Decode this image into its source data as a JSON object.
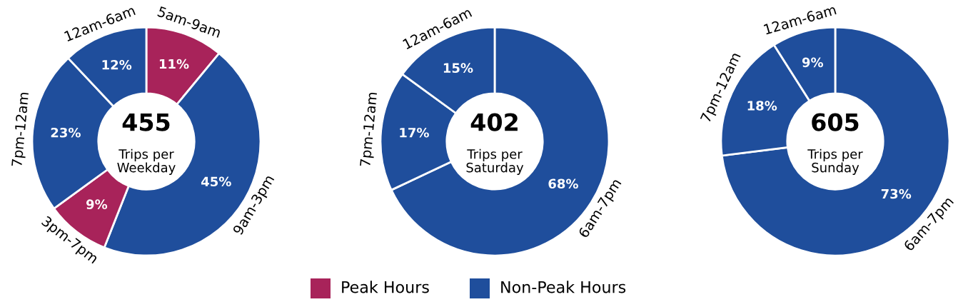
{
  "chart_data": [
    {
      "type": "donut",
      "categories": [
        "5am-9am",
        "9am-3pm",
        "3pm-7pm",
        "7pm-12am",
        "12am-6am"
      ],
      "values": [
        11,
        45,
        9,
        23,
        12
      ],
      "colors": [
        "#a8235a",
        "#1f4e9c",
        "#a8235a",
        "#1f4e9c",
        "#1f4e9c"
      ],
      "value_labels": [
        "11%",
        "45%",
        "9%",
        "23%",
        "12%"
      ],
      "annotations": [
        "455",
        "Trips per Weekday"
      ]
    },
    {
      "type": "donut",
      "categories": [
        "6am-7pm",
        "7pm-12am",
        "12am-6am"
      ],
      "values": [
        68,
        17,
        15
      ],
      "colors": [
        "#1f4e9c",
        "#1f4e9c",
        "#1f4e9c"
      ],
      "value_labels": [
        "68%",
        "17%",
        "15%"
      ],
      "annotations": [
        "402",
        "Trips per Saturday"
      ]
    },
    {
      "type": "donut",
      "categories": [
        "6am-7pm",
        "7pm-12am",
        "12am-6am"
      ],
      "values": [
        73,
        18,
        9
      ],
      "colors": [
        "#1f4e9c",
        "#1f4e9c",
        "#1f4e9c"
      ],
      "value_labels": [
        "73%",
        "18%",
        "9%"
      ],
      "annotations": [
        "605",
        "Trips per Sunday"
      ]
    },
    {
      "type": "other",
      "annotations": [
        "Peak Hours",
        "Non-Peak Hours"
      ],
      "colors": [
        "#a8235a",
        "#1f4e9c"
      ]
    }
  ]
}
